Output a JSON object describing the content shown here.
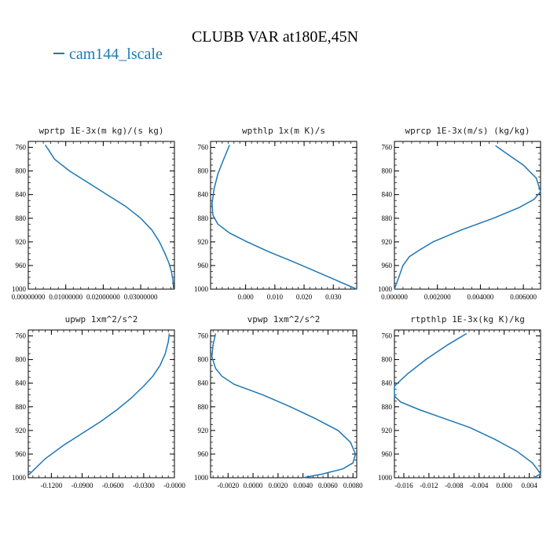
{
  "title": "CLUBB VAR at180E,45N",
  "legend": {
    "label": "cam144_lscale",
    "color": "#1f77b4"
  },
  "chart_data": [
    {
      "type": "line",
      "title": "wprtp   1E-3x(m kg)/(s kg)",
      "xlim": [
        0,
        0.039
      ],
      "ylim": [
        1000,
        750
      ],
      "xticks": [
        0,
        0.01,
        0.02,
        0.03
      ],
      "xticklabels": [
        "0.00000000",
        "0.01000000",
        "0.02000000",
        "0.03000000"
      ],
      "yticks": [
        760,
        800,
        840,
        880,
        920,
        960,
        1000
      ],
      "series": [
        {
          "x": [
            0.0045,
            0.0055,
            0.007,
            0.011,
            0.016,
            0.021,
            0.026,
            0.03,
            0.033,
            0.035,
            0.0365,
            0.0375,
            0.0382,
            0.0386,
            0.0388
          ],
          "y": [
            756,
            765,
            780,
            800,
            820,
            840,
            860,
            880,
            900,
            920,
            940,
            955,
            970,
            985,
            1000
          ]
        }
      ]
    },
    {
      "type": "line",
      "title": "wpthlp   1x(m K)/s",
      "xlim": [
        -0.012,
        0.038
      ],
      "ylim": [
        1000,
        750
      ],
      "xticks": [
        0,
        0.01,
        0.02,
        0.03
      ],
      "xticklabels": [
        "0.000",
        "0.010",
        "0.020",
        "0.030"
      ],
      "yticks": [
        760,
        800,
        840,
        880,
        920,
        960,
        1000
      ],
      "series": [
        {
          "x": [
            -0.0055,
            -0.0075,
            -0.0095,
            -0.0108,
            -0.0115,
            -0.0112,
            -0.0095,
            -0.0055,
            0.0005,
            0.008,
            0.016,
            0.024,
            0.031,
            0.038
          ],
          "y": [
            756,
            780,
            805,
            830,
            855,
            875,
            890,
            905,
            920,
            937,
            953,
            970,
            985,
            1000
          ]
        }
      ]
    },
    {
      "type": "line",
      "title": "wprcp   1E-3x(m/s) (kg/kg)",
      "xlim": [
        0,
        0.0068
      ],
      "ylim": [
        1000,
        750
      ],
      "xticks": [
        0,
        0.002,
        0.004,
        0.006
      ],
      "xticklabels": [
        "0.000000",
        "0.002000",
        "0.004000",
        "0.006000"
      ],
      "yticks": [
        760,
        800,
        840,
        880,
        920,
        960,
        1000
      ],
      "series": [
        {
          "x": [
            0.0047,
            0.0052,
            0.006,
            0.0066,
            0.0068,
            0.0065,
            0.0058,
            0.0046,
            0.0031,
            0.0018,
            0.0012,
            0.0007,
            0.0004,
            0.0002,
            0.0
          ],
          "y": [
            757,
            770,
            790,
            812,
            835,
            848,
            862,
            880,
            900,
            920,
            933,
            945,
            960,
            980,
            1000
          ]
        }
      ]
    },
    {
      "type": "line",
      "title": "upwp   1xm^2/s^2",
      "xlim": [
        -0.1425,
        0.0
      ],
      "ylim": [
        1000,
        750
      ],
      "xticks": [
        -0.12,
        -0.09,
        -0.06,
        -0.03,
        0.0
      ],
      "xticklabels": [
        "-0.1200",
        "-0.0900",
        "-0.0600",
        "-0.0300",
        "-0.0000"
      ],
      "yticks": [
        760,
        800,
        840,
        880,
        920,
        960,
        1000
      ],
      "series": [
        {
          "x": [
            -0.005,
            -0.006,
            -0.009,
            -0.014,
            -0.021,
            -0.03,
            -0.042,
            -0.056,
            -0.072,
            -0.09,
            -0.108,
            -0.126,
            -0.142
          ],
          "y": [
            756,
            770,
            790,
            810,
            828,
            845,
            865,
            885,
            905,
            925,
            945,
            968,
            995
          ]
        }
      ]
    },
    {
      "type": "line",
      "title": "vpwp   1xm^2/s^2",
      "xlim": [
        -0.0034,
        0.0083
      ],
      "ylim": [
        1000,
        750
      ],
      "xticks": [
        -0.002,
        0.0,
        0.002,
        0.004,
        0.006,
        0.008
      ],
      "xticklabels": [
        "-0.0020",
        "0.0000",
        "0.0020",
        "0.0040",
        "0.0060",
        "0.0080"
      ],
      "yticks": [
        760,
        800,
        840,
        880,
        920,
        960,
        1000
      ],
      "series": [
        {
          "x": [
            -0.003,
            -0.0032,
            -0.0033,
            -0.003,
            -0.0025,
            -0.0015,
            0.0008,
            0.003,
            0.005,
            0.0068,
            0.0078,
            0.0082,
            0.008,
            0.0072,
            0.0055,
            0.004
          ],
          "y": [
            756,
            775,
            795,
            815,
            828,
            842,
            860,
            880,
            900,
            920,
            940,
            960,
            975,
            985,
            994,
            1000
          ]
        }
      ]
    },
    {
      "type": "line",
      "title": "rtpthlp   1E-3x(kg K)/kg",
      "xlim": [
        -0.0175,
        0.0058
      ],
      "ylim": [
        1000,
        750
      ],
      "xticks": [
        -0.016,
        -0.012,
        -0.008,
        -0.004,
        0.0,
        0.004
      ],
      "xticklabels": [
        "-0.016",
        "-0.012",
        "-0.008",
        "-0.004",
        "0.000",
        "0.004"
      ],
      "yticks": [
        760,
        800,
        840,
        880,
        920,
        960,
        1000
      ],
      "series": [
        {
          "x": [
            -0.006,
            -0.009,
            -0.0125,
            -0.0155,
            -0.0175,
            -0.0175,
            -0.0165,
            -0.0135,
            -0.0095,
            -0.0055,
            -0.0015,
            0.002,
            0.0045,
            0.0058,
            0.0048
          ],
          "y": [
            756,
            775,
            800,
            825,
            845,
            862,
            872,
            885,
            900,
            915,
            935,
            955,
            975,
            993,
            1000
          ]
        }
      ]
    }
  ]
}
